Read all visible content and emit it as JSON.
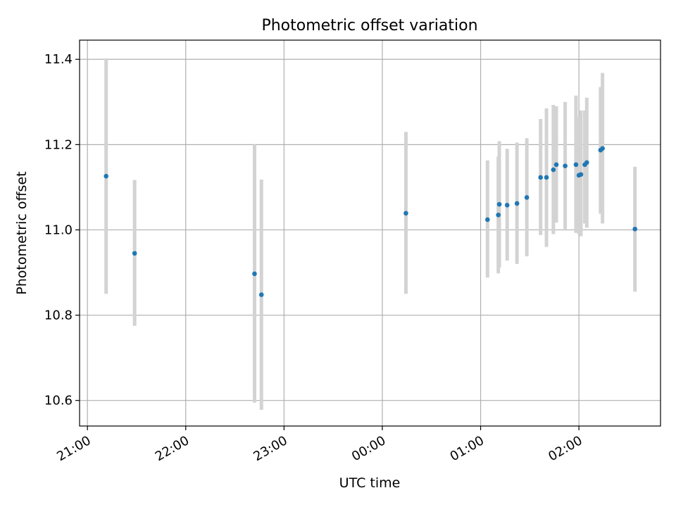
{
  "chart_data": {
    "type": "scatter",
    "title": "Photometric offset variation",
    "xlabel": "UTC time",
    "ylabel": "Photometric offset",
    "x_unit": "hours (UTC clock, values >= 24 are after midnight)",
    "xlim": [
      20.92,
      26.83
    ],
    "ylim": [
      10.54,
      11.445
    ],
    "x_ticks": [
      {
        "value": 21,
        "label": "21:00"
      },
      {
        "value": 22,
        "label": "22:00"
      },
      {
        "value": 23,
        "label": "23:00"
      },
      {
        "value": 24,
        "label": "00:00"
      },
      {
        "value": 25,
        "label": "01:00"
      },
      {
        "value": 26,
        "label": "02:00"
      }
    ],
    "y_ticks": [
      {
        "value": 10.6,
        "label": "10.6"
      },
      {
        "value": 10.8,
        "label": "10.8"
      },
      {
        "value": 11.0,
        "label": "11.0"
      },
      {
        "value": 11.2,
        "label": "11.2"
      },
      {
        "value": 11.4,
        "label": "11.4"
      }
    ],
    "grid": true,
    "point_color": "#1f77b4",
    "errorbar_color": "#d3d3d3",
    "points": [
      {
        "x": 21.19,
        "y": 11.126,
        "lo": 10.85,
        "hi": 11.402
      },
      {
        "x": 21.48,
        "y": 10.945,
        "lo": 10.775,
        "hi": 11.117
      },
      {
        "x": 22.7,
        "y": 10.897,
        "lo": 10.595,
        "hi": 11.2
      },
      {
        "x": 22.77,
        "y": 10.848,
        "lo": 10.578,
        "hi": 11.118
      },
      {
        "x": 24.24,
        "y": 11.039,
        "lo": 10.85,
        "hi": 11.23
      },
      {
        "x": 25.07,
        "y": 11.024,
        "lo": 10.888,
        "hi": 11.163
      },
      {
        "x": 25.18,
        "y": 11.035,
        "lo": 10.898,
        "hi": 11.172
      },
      {
        "x": 25.19,
        "y": 11.06,
        "lo": 10.912,
        "hi": 11.208
      },
      {
        "x": 25.27,
        "y": 11.058,
        "lo": 10.928,
        "hi": 11.19
      },
      {
        "x": 25.37,
        "y": 11.062,
        "lo": 10.92,
        "hi": 11.205
      },
      {
        "x": 25.47,
        "y": 11.076,
        "lo": 10.938,
        "hi": 11.215
      },
      {
        "x": 25.61,
        "y": 11.123,
        "lo": 10.988,
        "hi": 11.26
      },
      {
        "x": 25.67,
        "y": 11.123,
        "lo": 10.96,
        "hi": 11.285
      },
      {
        "x": 25.74,
        "y": 11.141,
        "lo": 10.99,
        "hi": 11.293
      },
      {
        "x": 25.77,
        "y": 11.153,
        "lo": 11.017,
        "hi": 11.29
      },
      {
        "x": 25.86,
        "y": 11.15,
        "lo": 10.998,
        "hi": 11.3
      },
      {
        "x": 25.97,
        "y": 11.153,
        "lo": 10.993,
        "hi": 11.315
      },
      {
        "x": 26.0,
        "y": 11.128,
        "lo": 10.99,
        "hi": 11.265
      },
      {
        "x": 26.02,
        "y": 11.13,
        "lo": 10.985,
        "hi": 11.28
      },
      {
        "x": 26.06,
        "y": 11.153,
        "lo": 11.015,
        "hi": 11.28
      },
      {
        "x": 26.08,
        "y": 11.158,
        "lo": 11.005,
        "hi": 11.31
      },
      {
        "x": 26.22,
        "y": 11.187,
        "lo": 11.038,
        "hi": 11.335
      },
      {
        "x": 26.24,
        "y": 11.191,
        "lo": 11.015,
        "hi": 11.368
      },
      {
        "x": 26.57,
        "y": 11.002,
        "lo": 10.855,
        "hi": 11.148
      }
    ]
  }
}
